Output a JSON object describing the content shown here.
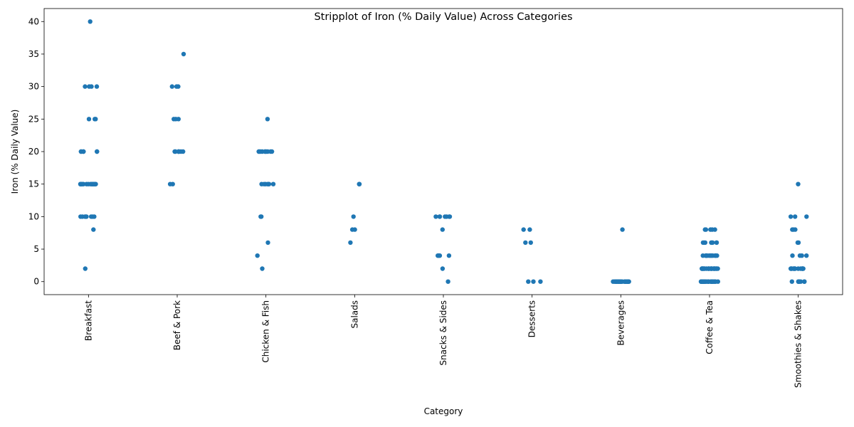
{
  "chart_data": {
    "type": "scatter",
    "subtype": "stripplot",
    "title": "Stripplot of Iron (% Daily Value) Across Categories",
    "xlabel": "Category",
    "ylabel": "Iron (% Daily Value)",
    "ylim": [
      -2,
      42
    ],
    "yticks": [
      0,
      5,
      10,
      15,
      20,
      25,
      30,
      35,
      40
    ],
    "grid": false,
    "legend": "none",
    "color": "#1f77b4",
    "categories": [
      "Breakfast",
      "Beef & Pork",
      "Chicken & Fish",
      "Salads",
      "Snacks & Sides",
      "Desserts",
      "Beverages",
      "Coffee & Tea",
      "Smoothies & Shakes"
    ],
    "values": [
      [
        40,
        30,
        30,
        30,
        30,
        25,
        25,
        25,
        20,
        20,
        20,
        20,
        20,
        20,
        15,
        15,
        15,
        15,
        15,
        15,
        15,
        15,
        15,
        15,
        15,
        15,
        15,
        15,
        15,
        15,
        15,
        15,
        15,
        15,
        10,
        10,
        10,
        10,
        10,
        10,
        10,
        10,
        8,
        2
      ],
      [
        35,
        30,
        30,
        30,
        25,
        25,
        25,
        20,
        20,
        20,
        20,
        20,
        20,
        20,
        15,
        15
      ],
      [
        25,
        20,
        20,
        20,
        20,
        20,
        20,
        20,
        20,
        20,
        20,
        15,
        15,
        15,
        15,
        15,
        15,
        15,
        10,
        10,
        6,
        4,
        2
      ],
      [
        15,
        15,
        10,
        8,
        8,
        6
      ],
      [
        10,
        10,
        10,
        10,
        10,
        10,
        10,
        8,
        4,
        4,
        4,
        4,
        2,
        0
      ],
      [
        8,
        8,
        6,
        6,
        0,
        0,
        0
      ],
      [
        8,
        0,
        0,
        0,
        0,
        0,
        0,
        0,
        0,
        0,
        0,
        0,
        0,
        0,
        0,
        0,
        0,
        0,
        0,
        0,
        0,
        0,
        0,
        0,
        0,
        0,
        0
      ],
      [
        8,
        8,
        8,
        8,
        8,
        6,
        6,
        6,
        6,
        6,
        6,
        6,
        6,
        4,
        4,
        4,
        4,
        4,
        4,
        4,
        4,
        4,
        4,
        4,
        4,
        2,
        2,
        2,
        2,
        2,
        2,
        2,
        2,
        2,
        2,
        2,
        2,
        2,
        2,
        2,
        2,
        2,
        2,
        2,
        2,
        2,
        2,
        0,
        0,
        0,
        0,
        0,
        0,
        0,
        0,
        0,
        0,
        0,
        0,
        0,
        0,
        0,
        0,
        0,
        0,
        0,
        0,
        0,
        0,
        0,
        0,
        0,
        0,
        0
      ],
      [
        15,
        10,
        10,
        10,
        8,
        8,
        8,
        6,
        6,
        4,
        4,
        4,
        4,
        2,
        2,
        2,
        2,
        2,
        2,
        2,
        2,
        2,
        2,
        2,
        2,
        2,
        0,
        0,
        0,
        0,
        0,
        0,
        0,
        0
      ]
    ]
  }
}
